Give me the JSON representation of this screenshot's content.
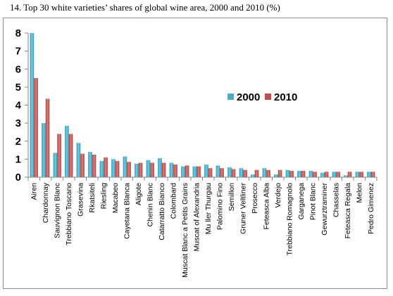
{
  "page": {
    "title": "14.  Top 30 white varieties’ shares of global wine area, 2000 and 2010 (%)"
  },
  "chart_data": {
    "type": "bar",
    "title": "",
    "xlabel": "",
    "ylabel": "",
    "ylim": [
      0,
      8
    ],
    "yticks": [
      0,
      1,
      2,
      3,
      4,
      5,
      6,
      7,
      8
    ],
    "grid": false,
    "legend_position": "right",
    "categories": [
      "Airen",
      "Chardonnay",
      "Sauvignon Blanc",
      "Trebbiano Toscano",
      "Grasevina",
      "Rkatsiteli",
      "Riesling",
      "Macabeo",
      "Cayetana Blanca",
      "Aligote",
      "Chenin Blanc",
      "Catarratto Bianco",
      "Colombard",
      "Muscat Blanc a Petits Grains",
      "Muscat of Alexandria",
      "Mu ller Thurgau",
      "Palomino Fino",
      "Semillon",
      "Gruner Veltliner",
      "Prosecco",
      "Feteasca Alba",
      "Verdejo",
      "Trebbiano Romagnolo",
      "Garganega",
      "Pinot Blanc",
      "Gewurztraminer",
      "Chasselas",
      "Feteasca Regala",
      "Melon",
      "Pedro Gimenez"
    ],
    "series": [
      {
        "name": "2000",
        "color": "#4bacc6",
        "values": [
          8.0,
          3.0,
          1.35,
          2.85,
          1.9,
          1.4,
          0.9,
          1.0,
          1.15,
          0.75,
          0.95,
          1.05,
          0.8,
          0.6,
          0.6,
          0.7,
          0.65,
          0.55,
          0.5,
          0.15,
          0.5,
          0.15,
          0.4,
          0.35,
          0.35,
          0.25,
          0.3,
          0.1,
          0.3,
          0.3
        ]
      },
      {
        "name": "2010",
        "color": "#c0504d",
        "values": [
          5.5,
          4.35,
          2.4,
          2.4,
          1.3,
          1.25,
          1.1,
          0.9,
          0.85,
          0.8,
          0.8,
          0.8,
          0.7,
          0.65,
          0.6,
          0.5,
          0.5,
          0.45,
          0.4,
          0.4,
          0.4,
          0.4,
          0.35,
          0.35,
          0.3,
          0.3,
          0.3,
          0.3,
          0.3,
          0.3
        ]
      }
    ]
  }
}
